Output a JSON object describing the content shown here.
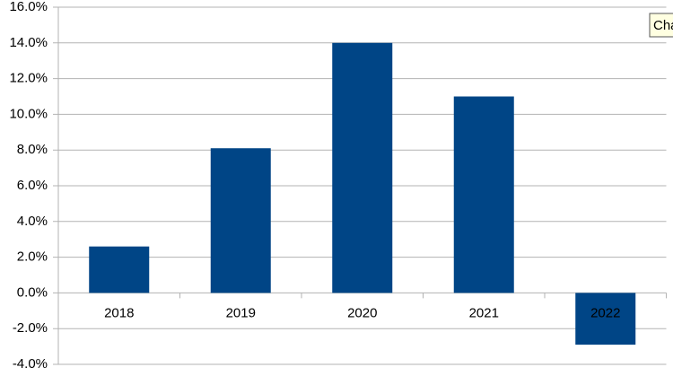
{
  "chart_data": {
    "type": "bar",
    "categories": [
      "2018",
      "2019",
      "2020",
      "2021",
      "2022"
    ],
    "values": [
      2.6,
      8.1,
      14.0,
      11.0,
      -2.9
    ],
    "color": "#004586",
    "ylim": [
      -4,
      16
    ],
    "yticks": [
      {
        "value": -4,
        "label": "-4.0%"
      },
      {
        "value": -2,
        "label": "-2.0%"
      },
      {
        "value": 0,
        "label": "0.0%"
      },
      {
        "value": 2,
        "label": "2.0%"
      },
      {
        "value": 4,
        "label": "4.0%"
      },
      {
        "value": 6,
        "label": "6.0%"
      },
      {
        "value": 8,
        "label": "8.0%"
      },
      {
        "value": 10,
        "label": "10.0%"
      },
      {
        "value": 12,
        "label": "12.0%"
      },
      {
        "value": 14,
        "label": "14.0%"
      },
      {
        "value": 16,
        "label": "16.0%"
      }
    ],
    "grid": true
  },
  "tooltip": "Cha"
}
